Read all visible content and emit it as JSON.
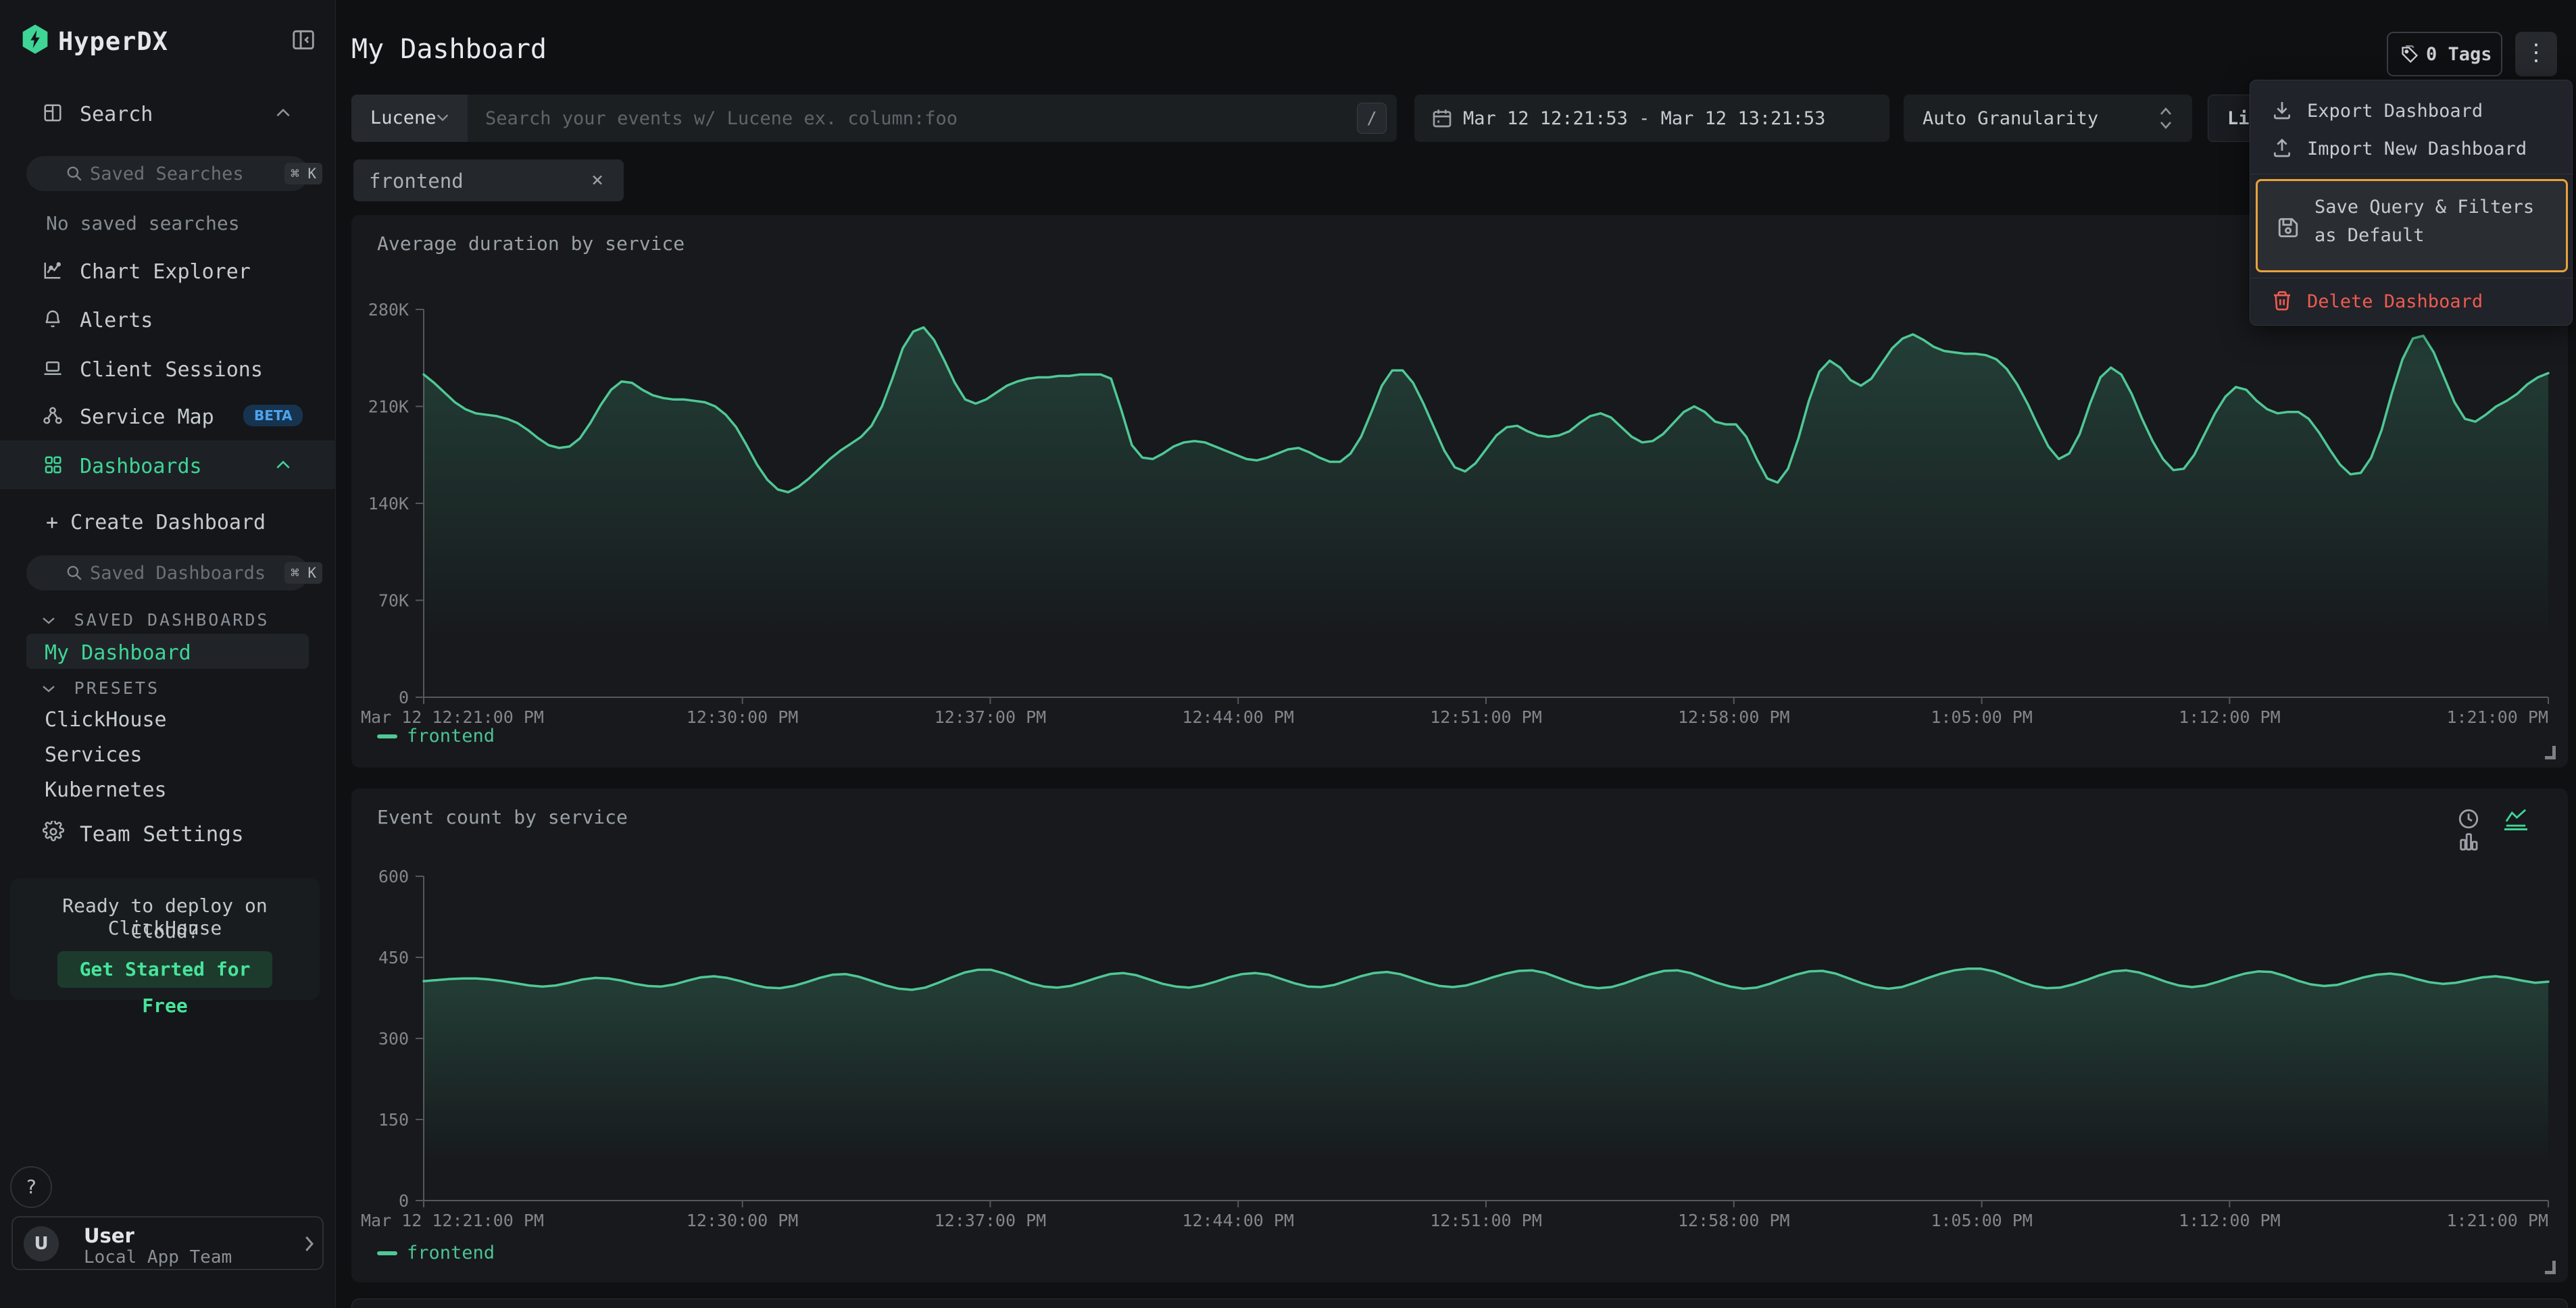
{
  "colors": {
    "accent": "#3ed596",
    "line": "#4fc896",
    "badge_beta_bg": "#163450",
    "badge_beta_text": "#4da3ec",
    "danger": "#ef5b51",
    "highlight_border": "#e9a23b"
  },
  "app": {
    "brand": "HyperDX"
  },
  "sidebar": {
    "search_item": "Search",
    "saved_searches_placeholder": "Saved Searches",
    "shortcut": "⌘ K",
    "no_saved": "No saved searches",
    "nav": [
      {
        "label": "Chart Explorer"
      },
      {
        "label": "Alerts"
      },
      {
        "label": "Client Sessions"
      },
      {
        "label": "Service Map",
        "badge": "BETA"
      },
      {
        "label": "Dashboards"
      }
    ],
    "create_dashboard": "+ Create Dashboard",
    "saved_dashboards_placeholder": "Saved Dashboards",
    "sections": {
      "saved": "SAVED DASHBOARDS",
      "presets": "PRESETS"
    },
    "saved_items": [
      {
        "label": "My Dashboard"
      }
    ],
    "preset_items": [
      {
        "label": "ClickHouse"
      },
      {
        "label": "Services"
      },
      {
        "label": "Kubernetes"
      }
    ],
    "team_settings": "Team Settings",
    "promo": {
      "line1": "Ready to deploy on ClickHouse",
      "line2": "Cloud?",
      "cta": "Get Started for Free"
    },
    "help": "?",
    "user": {
      "initial": "U",
      "name": "User",
      "team": "Local App Team"
    }
  },
  "header": {
    "title": "My Dashboard",
    "tags": "0 Tags",
    "dots": "⋮"
  },
  "filter_bar": {
    "language": "Lucene",
    "search_placeholder": "Search your events w/ Lucene ex. column:foo",
    "slash_shortcut": "/",
    "date_range": "Mar 12 12:21:53 - Mar 12 13:21:53",
    "granularity": "Auto Granularity",
    "live_clipped": "Li"
  },
  "filters": {
    "chip": "frontend"
  },
  "menu": {
    "export": "Export Dashboard",
    "import": "Import New Dashboard",
    "save_default": "Save Query & Filters as Default",
    "delete": "Delete Dashboard"
  },
  "chart_data": [
    {
      "type": "line",
      "title": "Average duration by service",
      "grid": false,
      "legend_position": "bottom-left",
      "value_unit": "thousands",
      "ylim": [
        0,
        280
      ],
      "y_ticks": {
        "values": [
          0,
          70,
          140,
          210,
          280
        ],
        "labels": [
          "0",
          "70K",
          "140K",
          "210K",
          "280K"
        ]
      },
      "xrange_minutes": [
        0,
        60
      ],
      "x_ticks": {
        "minutes": [
          0,
          9,
          16,
          23,
          30,
          37,
          44,
          51,
          60
        ],
        "labels": [
          "Mar 12 12:21:00 PM",
          "12:30:00 PM",
          "12:37:00 PM",
          "12:44:00 PM",
          "12:51:00 PM",
          "12:58:00 PM",
          "1:05:00 PM",
          "1:12:00 PM",
          "1:21:00 PM"
        ]
      },
      "series": [
        {
          "name": "frontend",
          "values": [
            233,
            227,
            220,
            213,
            208,
            205,
            204,
            203,
            201,
            198,
            193,
            187,
            182,
            180,
            181,
            187,
            198,
            211,
            222,
            228,
            227,
            222,
            218,
            216,
            215,
            215,
            214,
            213,
            210,
            204,
            195,
            182,
            168,
            157,
            150,
            148,
            152,
            158,
            165,
            172,
            178,
            183,
            188,
            196,
            210,
            230,
            252,
            264,
            267,
            258,
            243,
            227,
            215,
            212,
            215,
            220,
            225,
            228,
            230,
            231,
            231,
            232,
            232,
            233,
            233,
            233,
            230,
            207,
            182,
            173,
            172,
            176,
            181,
            184,
            185,
            184,
            181,
            178,
            175,
            172,
            171,
            173,
            176,
            179,
            180,
            177,
            173,
            170,
            170,
            176,
            188,
            206,
            225,
            236,
            236,
            227,
            212,
            195,
            178,
            166,
            163,
            169,
            179,
            189,
            195,
            196,
            192,
            189,
            188,
            189,
            192,
            198,
            203,
            205,
            202,
            195,
            188,
            184,
            185,
            190,
            198,
            206,
            210,
            206,
            199,
            197,
            197,
            188,
            172,
            158,
            155,
            165,
            187,
            214,
            235,
            243,
            238,
            229,
            225,
            230,
            241,
            252,
            259,
            262,
            258,
            253,
            250,
            249,
            248,
            248,
            247,
            244,
            237,
            226,
            212,
            196,
            181,
            172,
            176,
            190,
            212,
            231,
            238,
            233,
            219,
            201,
            185,
            172,
            164,
            165,
            175,
            190,
            205,
            217,
            224,
            222,
            214,
            208,
            205,
            206,
            206,
            201,
            191,
            179,
            168,
            161,
            162,
            173,
            193,
            220,
            244,
            259,
            261,
            249,
            231,
            213,
            201,
            199,
            204,
            210,
            214,
            219,
            226,
            231,
            234
          ]
        }
      ]
    },
    {
      "type": "line",
      "title": "Event count by service",
      "grid": false,
      "legend_position": "bottom-left",
      "ylim": [
        0,
        600
      ],
      "y_ticks": {
        "values": [
          0,
          150,
          300,
          450,
          600
        ],
        "labels": [
          "0",
          "150",
          "300",
          "450",
          "600"
        ]
      },
      "xrange_minutes": [
        0,
        60
      ],
      "x_ticks": {
        "minutes": [
          0,
          9,
          16,
          23,
          30,
          37,
          44,
          51,
          60
        ],
        "labels": [
          "Mar 12 12:21:00 PM",
          "12:30:00 PM",
          "12:37:00 PM",
          "12:44:00 PM",
          "12:51:00 PM",
          "12:58:00 PM",
          "1:05:00 PM",
          "1:12:00 PM",
          "1:21:00 PM"
        ]
      },
      "series": [
        {
          "name": "frontend",
          "values": [
            406,
            408,
            410,
            411,
            411,
            409,
            406,
            402,
            398,
            396,
            398,
            403,
            409,
            412,
            411,
            407,
            401,
            397,
            396,
            400,
            407,
            413,
            415,
            412,
            406,
            399,
            394,
            393,
            397,
            404,
            412,
            418,
            419,
            414,
            406,
            398,
            392,
            390,
            394,
            403,
            413,
            422,
            427,
            427,
            420,
            411,
            402,
            396,
            394,
            397,
            404,
            412,
            419,
            421,
            417,
            409,
            401,
            396,
            394,
            398,
            405,
            413,
            419,
            421,
            418,
            410,
            402,
            396,
            395,
            399,
            407,
            415,
            421,
            423,
            419,
            411,
            403,
            397,
            395,
            398,
            405,
            413,
            420,
            425,
            426,
            421,
            412,
            403,
            396,
            393,
            395,
            402,
            411,
            419,
            425,
            426,
            421,
            412,
            403,
            396,
            392,
            394,
            401,
            410,
            418,
            424,
            425,
            420,
            411,
            402,
            395,
            392,
            395,
            403,
            412,
            420,
            426,
            429,
            429,
            424,
            415,
            405,
            397,
            393,
            394,
            400,
            408,
            417,
            424,
            426,
            422,
            414,
            405,
            398,
            395,
            398,
            405,
            413,
            420,
            424,
            423,
            416,
            407,
            400,
            397,
            399,
            406,
            413,
            418,
            420,
            417,
            410,
            404,
            401,
            403,
            408,
            413,
            415,
            412,
            407,
            403,
            405
          ]
        }
      ]
    }
  ]
}
